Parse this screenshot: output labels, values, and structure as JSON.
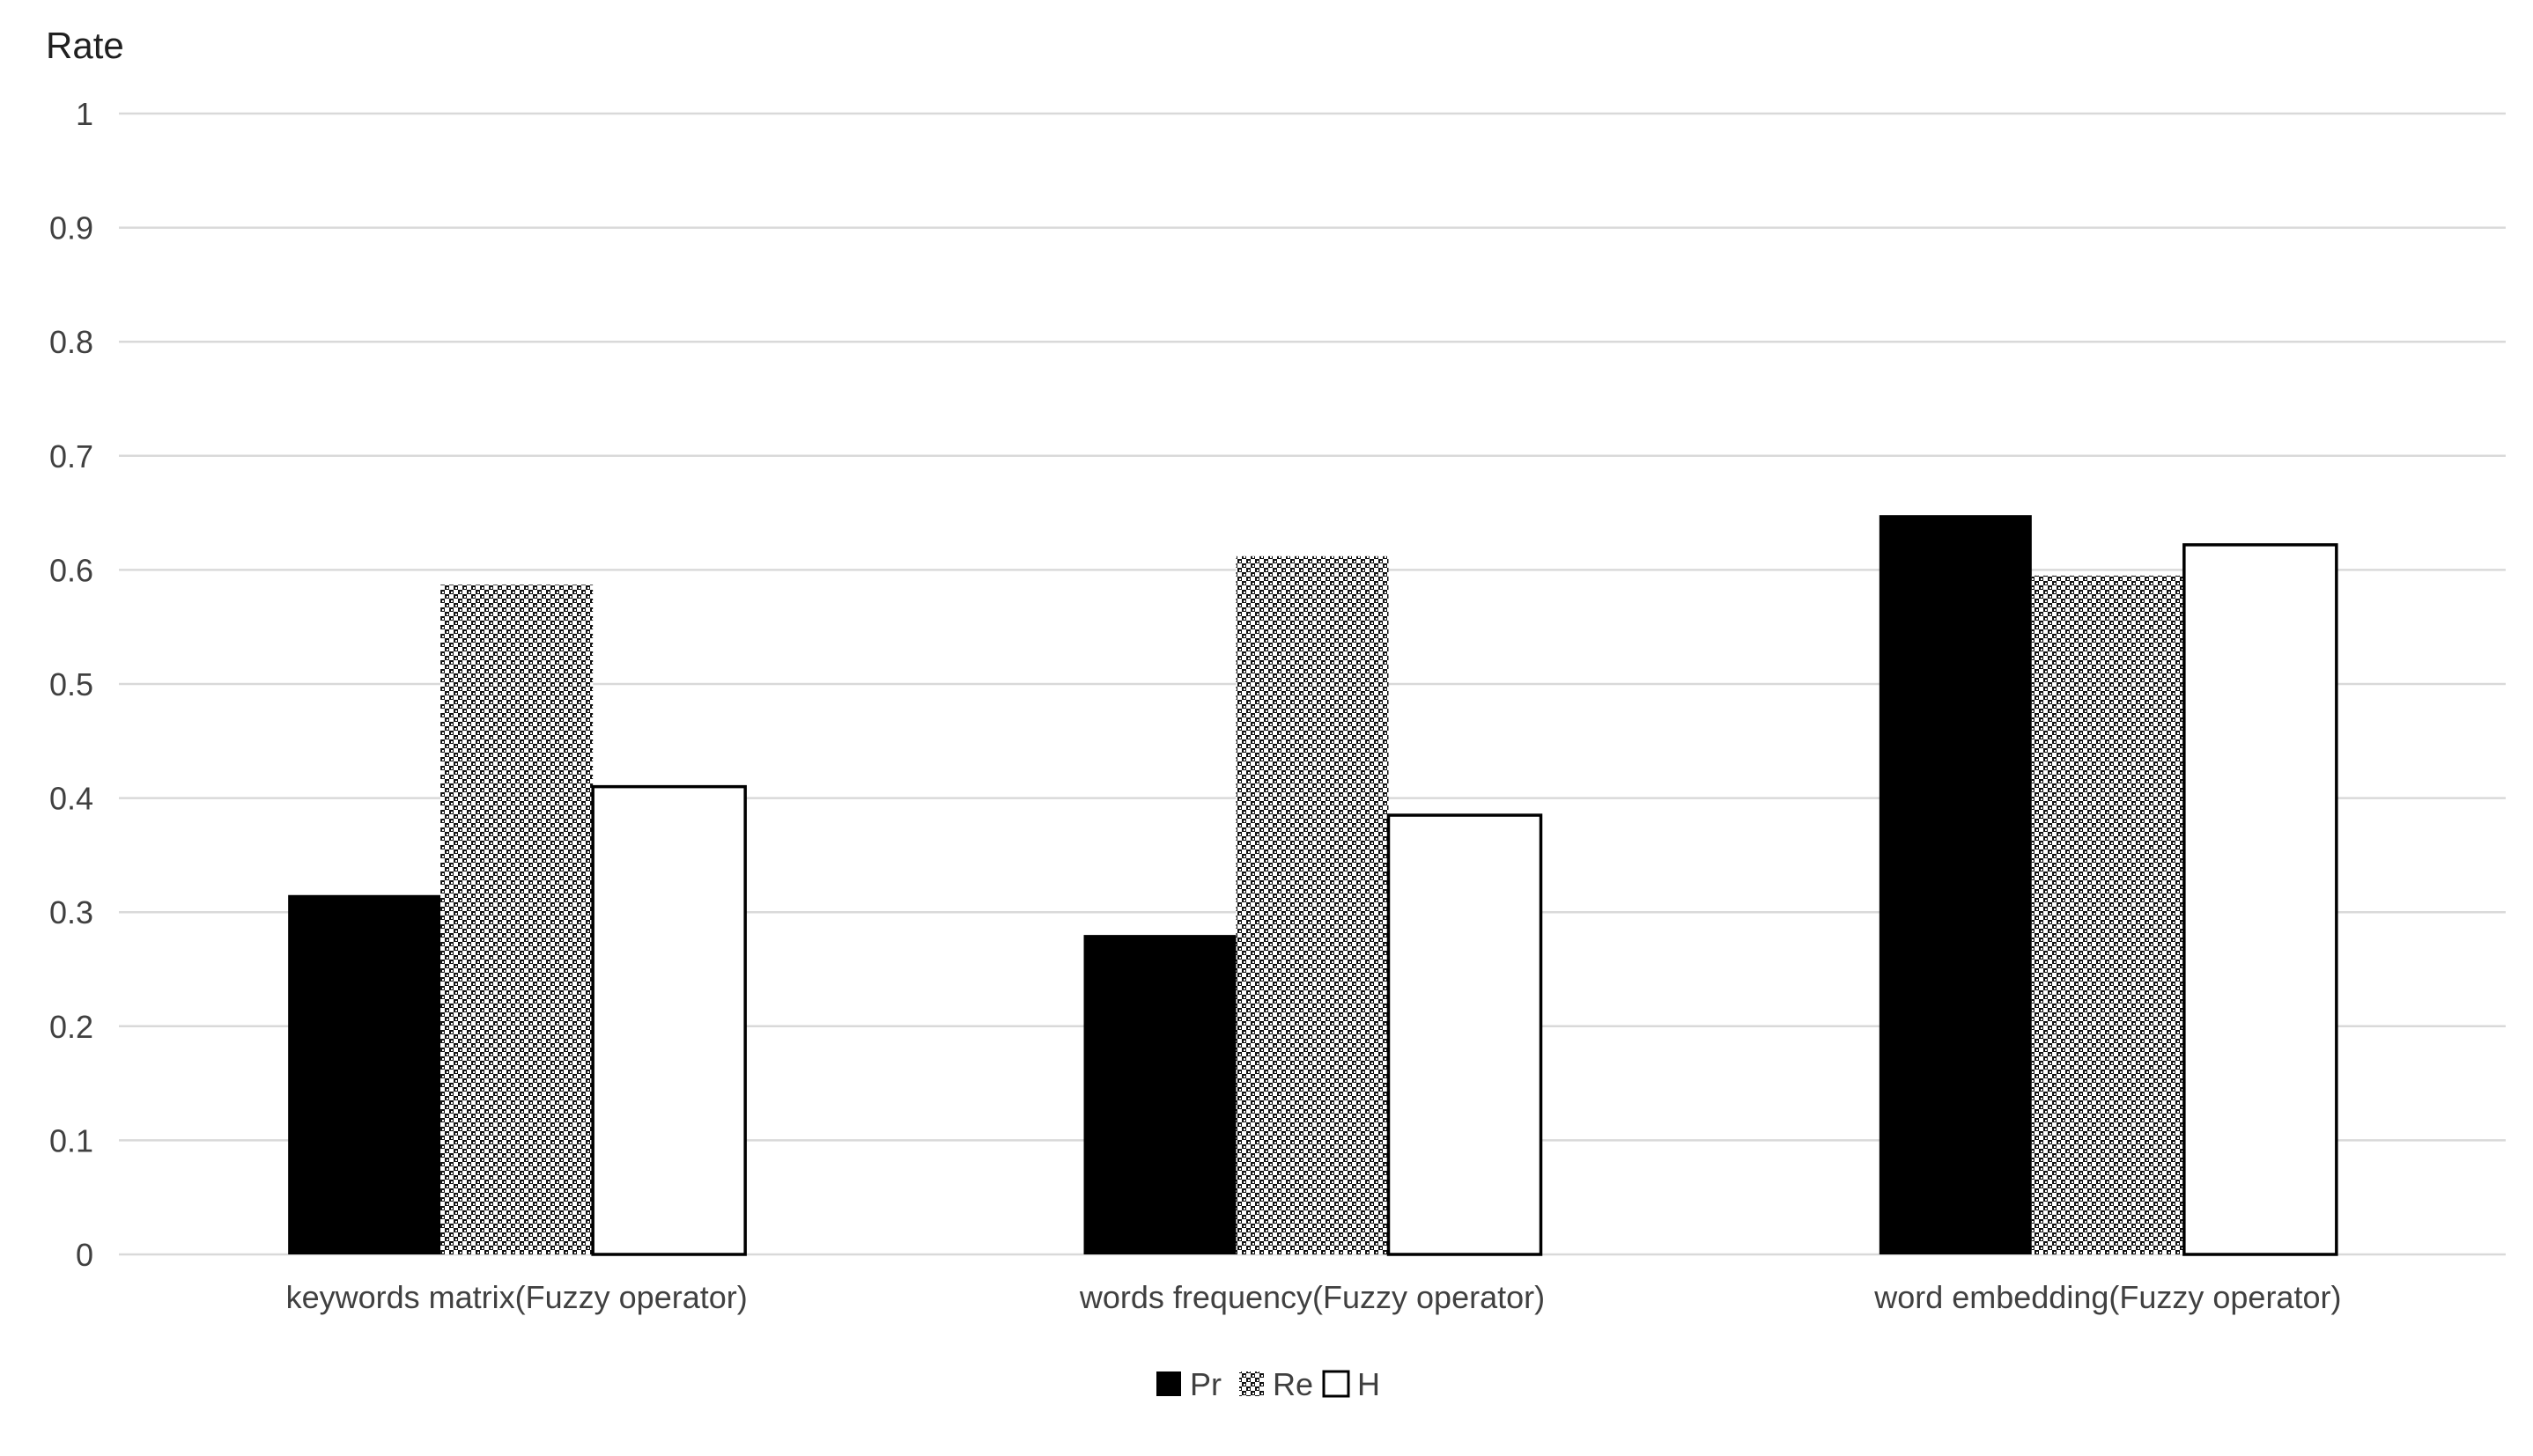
{
  "chart_data": {
    "type": "bar",
    "title": "",
    "xlabel": "",
    "ylabel": "Rate",
    "ylim": [
      0,
      1
    ],
    "yticks": [
      "0",
      "0.1",
      "0.2",
      "0.3",
      "0.4",
      "0.5",
      "0.6",
      "0.7",
      "0.8",
      "0.9",
      "1"
    ],
    "grid": true,
    "legend_position": "bottom",
    "categories": [
      "keywords matrix(Fuzzy operator)",
      "words frequency(Fuzzy operator)",
      "word embedding(Fuzzy operator)"
    ],
    "series": [
      {
        "name": "Pr",
        "values": [
          0.315,
          0.28,
          0.648
        ],
        "fill": "solid",
        "color": "#000000"
      },
      {
        "name": "Re",
        "values": [
          0.587,
          0.612,
          0.595
        ],
        "fill": "crosshatch",
        "color": "#000000"
      },
      {
        "name": "H",
        "values": [
          0.41,
          0.385,
          0.622
        ],
        "fill": "hollow",
        "color": "#ffffff"
      }
    ]
  }
}
